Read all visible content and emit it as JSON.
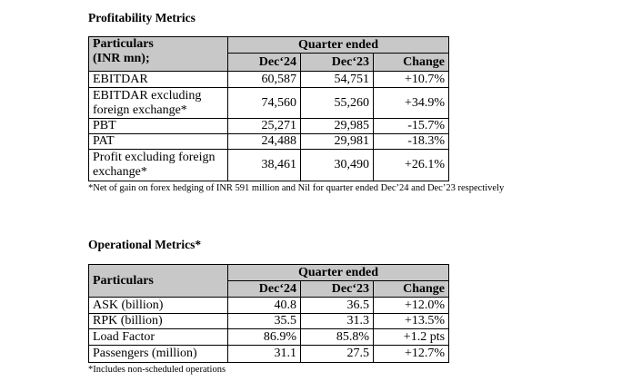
{
  "profitability": {
    "title": "Profitability Metrics",
    "header": {
      "particulars_line1": "Particulars",
      "particulars_line2": "(INR mn);",
      "group": "Quarter ended",
      "col1": "Dec‘24",
      "col2": "Dec‘23",
      "col3": "Change"
    },
    "rows": [
      {
        "label": "EBITDAR",
        "dec24": "60,587",
        "dec23": "54,751",
        "change": "+10.7%"
      },
      {
        "label": "EBITDAR excluding foreign exchange*",
        "dec24": "74,560",
        "dec23": "55,260",
        "change": "+34.9%"
      },
      {
        "label": "PBT",
        "dec24": "25,271",
        "dec23": "29,985",
        "change": "-15.7%"
      },
      {
        "label": "PAT",
        "dec24": "24,488",
        "dec23": "29,981",
        "change": "-18.3%"
      },
      {
        "label": "Profit excluding foreign exchange*",
        "dec24": "38,461",
        "dec23": "30,490",
        "change": "+26.1%"
      }
    ],
    "footnote": "*Net of gain on forex hedging of INR 591 million and Nil for quarter ended Dec’24 and Dec’23 respectively"
  },
  "operational": {
    "title": "Operational Metrics*",
    "header": {
      "particulars": "Particulars",
      "group": "Quarter ended",
      "col1": "Dec‘24",
      "col2": "Dec‘23",
      "col3": "Change"
    },
    "rows": [
      {
        "label": "ASK (billion)",
        "dec24": "40.8",
        "dec23": "36.5",
        "change": "+12.0%"
      },
      {
        "label": "RPK (billion)",
        "dec24": "35.5",
        "dec23": "31.3",
        "change": "+13.5%"
      },
      {
        "label": "Load Factor",
        "dec24": "86.9%",
        "dec23": "85.8%",
        "change": "+1.2 pts"
      },
      {
        "label": "Passengers (million)",
        "dec24": "31.1",
        "dec23": "27.5",
        "change": "+12.7%"
      }
    ],
    "footnote": "*Includes non-scheduled operations"
  }
}
